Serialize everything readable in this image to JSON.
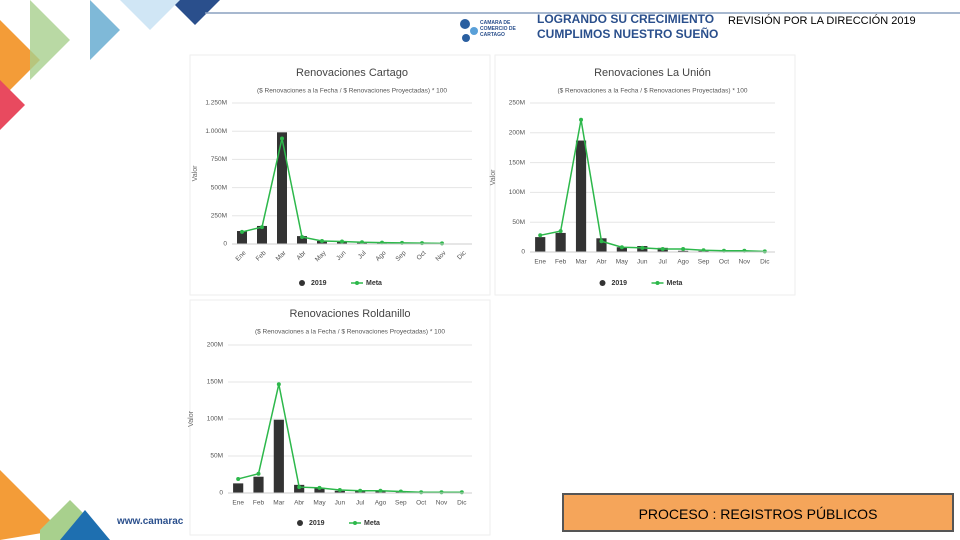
{
  "header": {
    "logo": "CAMARA DE COMERCIO DE CARTAGO",
    "slogan1": "LOGRANDO SU CRECIMIENTO",
    "slogan2": "CUMPLIMOS NUESTRO SUEÑO",
    "review": "REVISIÓN POR LA DIRECCIÓN 2019"
  },
  "footer": {
    "url": "www.camarac",
    "process": "PROCESO : REGISTROS PÚBLICOS"
  },
  "chart_data": [
    {
      "type": "bar",
      "title": "Renovaciones Cartago",
      "subtitle": "($ Renovaciones a la Fecha / $ Renovaciones Proyectadas) * 100",
      "y_label": "Valor",
      "categories": [
        "Ene",
        "Feb",
        "Mar",
        "Abr",
        "May",
        "Jun",
        "Jul",
        "Ago",
        "Sep",
        "Oct",
        "Nov",
        "Dic"
      ],
      "ylim": [
        0,
        1250
      ],
      "yticks": [
        0,
        {
          "value": 250,
          "label": "250M"
        },
        {
          "value": 500,
          "label": "500M"
        },
        {
          "value": 750,
          "label": "750M"
        },
        {
          "value": 1000,
          "label": "1.000M"
        },
        {
          "value": 1250,
          "label": "1.250M"
        }
      ],
      "series": [
        {
          "name": "2019",
          "color": "#333333",
          "values": [
            115,
            160,
            990,
            70,
            27,
            18,
            12,
            10,
            8,
            6,
            4,
            2
          ]
        },
        {
          "name": "Meta",
          "color": "#2db84b",
          "type": "line",
          "values": [
            107,
            150,
            935,
            62,
            27,
            22,
            15,
            12,
            10,
            8,
            5,
            null
          ]
        }
      ]
    },
    {
      "type": "bar",
      "title": "Renovaciones La Unión",
      "subtitle": "($ Renovaciones a la Fecha / $ Renovaciones Proyectadas) * 100",
      "y_label": "Valor",
      "categories": [
        "Ene",
        "Feb",
        "Mar",
        "Abr",
        "May",
        "Jun",
        "Jul",
        "Ago",
        "Sep",
        "Oct",
        "Nov",
        "Dic"
      ],
      "ylim": [
        0,
        250
      ],
      "yticks": [
        0,
        {
          "value": 50,
          "label": "50M"
        },
        {
          "value": 100,
          "label": "100M"
        },
        {
          "value": 150,
          "label": "150M"
        },
        {
          "value": 200,
          "label": "200M"
        },
        {
          "value": 250,
          "label": "250M"
        }
      ],
      "series": [
        {
          "name": "2019",
          "color": "#333333",
          "values": [
            25,
            32,
            187,
            23,
            8,
            10,
            7,
            2,
            2,
            1,
            1,
            0
          ]
        },
        {
          "name": "Meta",
          "color": "#2db84b",
          "type": "line",
          "values": [
            28,
            35,
            222,
            18,
            8,
            7,
            5,
            5,
            3,
            2,
            2,
            1
          ]
        }
      ]
    },
    {
      "type": "bar",
      "title": "Renovaciones Roldanillo",
      "subtitle": "($ Renovaciones a la Fecha / $ Renovaciones Proyectadas) * 100",
      "y_label": "Valor",
      "categories": [
        "Ene",
        "Feb",
        "Mar",
        "Abr",
        "May",
        "Jun",
        "Jul",
        "Ago",
        "Sep",
        "Oct",
        "Nov",
        "Dic"
      ],
      "ylim": [
        0,
        200
      ],
      "yticks": [
        0,
        {
          "value": 50,
          "label": "50M"
        },
        {
          "value": 100,
          "label": "100M"
        },
        {
          "value": 150,
          "label": "150M"
        },
        {
          "value": 200,
          "label": "200M"
        }
      ],
      "series": [
        {
          "name": "2019",
          "color": "#333333",
          "values": [
            13,
            22,
            99,
            11,
            7,
            3,
            3,
            3,
            2,
            1,
            0.5,
            0
          ]
        },
        {
          "name": "Meta",
          "color": "#2db84b",
          "type": "line",
          "values": [
            19,
            26,
            147,
            8,
            7,
            4,
            3,
            3,
            2,
            1,
            1,
            1
          ]
        }
      ]
    }
  ]
}
